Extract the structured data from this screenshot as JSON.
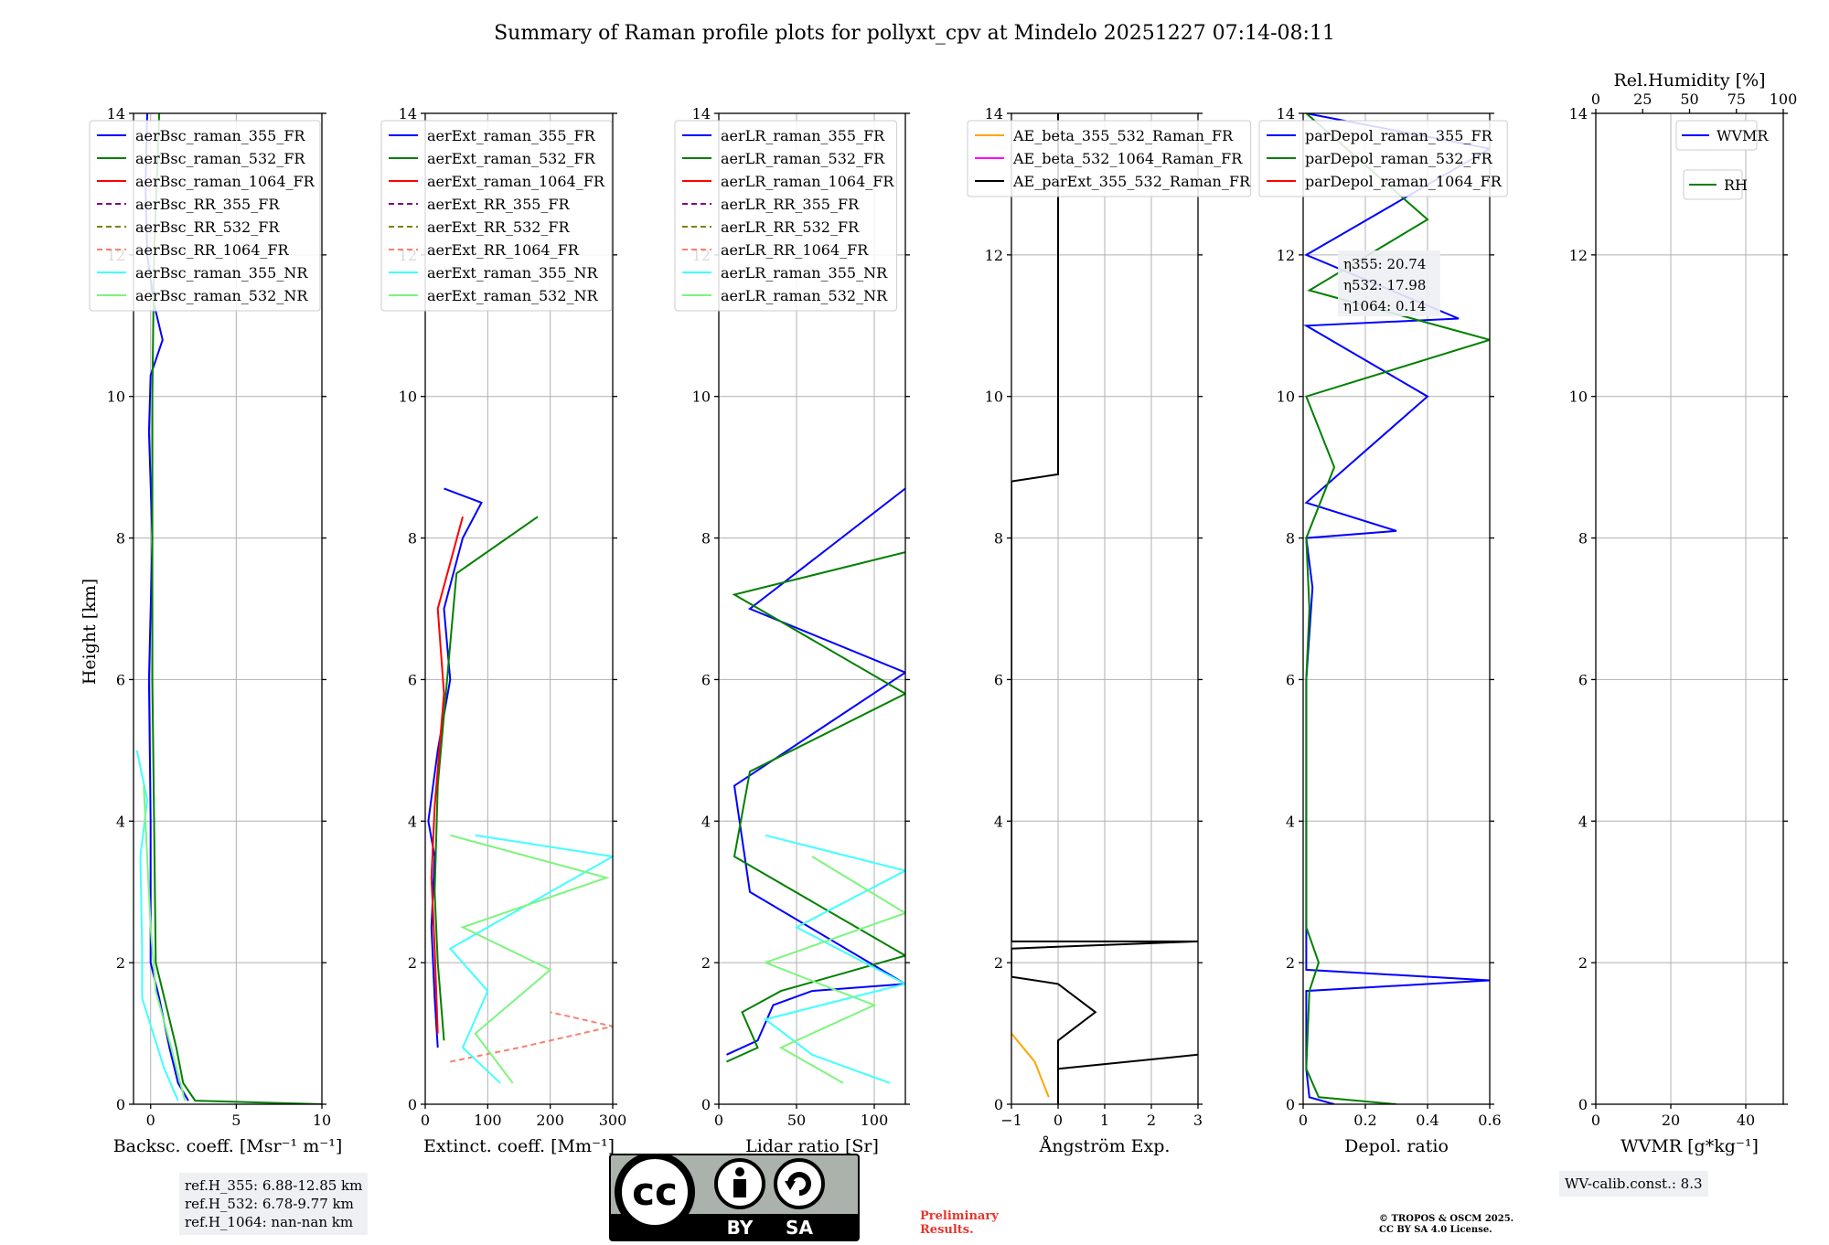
{
  "title": "Summary of Raman profile plots for pollyxt_cpv at Mindelo 20251227 07:14-08:11",
  "ylabel": "Height [km]",
  "preliminary": [
    "Preliminary",
    "Results."
  ],
  "copyright": [
    "© TROPOS & OSCM 2025.",
    "CC BY SA 4.0 License."
  ],
  "ref_heights": [
    "ref.H_355: 6.88-12.85 km",
    "ref.H_532: 6.78-9.77 km",
    "ref.H_1064: nan-nan km"
  ],
  "wv_calib": "WV-calib.const.: 8.3",
  "license_badge": {
    "cc": "cc",
    "by": "BY",
    "sa": "SA"
  },
  "chart_data": [
    {
      "type": "line",
      "name": "backscatter",
      "xlabel": "Backsc. coeff. [Msr⁻¹ m⁻¹]",
      "xlim": [
        -1,
        10
      ],
      "ylim": [
        0,
        14
      ],
      "xticks": [
        0,
        5,
        10
      ],
      "yticks": [
        0,
        2,
        4,
        6,
        8,
        10,
        12,
        14
      ],
      "legend": "top-left",
      "series": [
        {
          "name": "aerBsc_raman_355_FR",
          "color": "#0000ff",
          "dash": "",
          "points": [
            [
              2.2,
              0.05
            ],
            [
              1.6,
              0.3
            ],
            [
              1.1,
              0.8
            ],
            [
              0.5,
              1.5
            ],
            [
              0.0,
              2.0
            ],
            [
              0.0,
              4
            ],
            [
              -0.1,
              6
            ],
            [
              0.1,
              8
            ],
            [
              -0.1,
              9.5
            ],
            [
              0.0,
              10.3
            ],
            [
              0.7,
              10.8
            ],
            [
              0.2,
              11.3
            ],
            [
              -0.2,
              12
            ],
            [
              -0.3,
              13
            ],
            [
              -0.2,
              14
            ]
          ]
        },
        {
          "name": "aerBsc_raman_532_FR",
          "color": "#008000",
          "dash": "",
          "points": [
            [
              10,
              0.0
            ],
            [
              2.6,
              0.05
            ],
            [
              1.9,
              0.3
            ],
            [
              1.5,
              0.8
            ],
            [
              0.8,
              1.5
            ],
            [
              0.3,
              2.0
            ],
            [
              0.2,
              4
            ],
            [
              0.1,
              6
            ],
            [
              0.1,
              8
            ],
            [
              0.1,
              10
            ],
            [
              0.2,
              12
            ],
            [
              0.5,
              14
            ]
          ]
        },
        {
          "name": "aerBsc_raman_1064_FR",
          "color": "#ff0000",
          "dash": "",
          "points": []
        },
        {
          "name": "aerBsc_RR_355_FR",
          "color": "#800080",
          "dash": "6,4",
          "points": []
        },
        {
          "name": "aerBsc_RR_532_FR",
          "color": "#808000",
          "dash": "6,4",
          "points": []
        },
        {
          "name": "aerBsc_RR_1064_FR",
          "color": "#fa8072",
          "dash": "6,4",
          "points": []
        },
        {
          "name": "aerBsc_raman_355_NR",
          "color": "#40ffff",
          "dash": "",
          "points": [
            [
              1.6,
              0.05
            ],
            [
              0.8,
              0.5
            ],
            [
              -0.5,
              1.5
            ],
            [
              -0.5,
              2.2
            ],
            [
              -0.6,
              3.5
            ],
            [
              -0.2,
              4.3
            ],
            [
              -0.8,
              5.0
            ]
          ]
        },
        {
          "name": "aerBsc_raman_532_NR",
          "color": "#7df57d",
          "dash": "",
          "points": [
            [
              2.0,
              0.05
            ],
            [
              1.2,
              0.8
            ],
            [
              0.3,
              1.6
            ],
            [
              0.0,
              2.5
            ],
            [
              -0.4,
              4.5
            ]
          ]
        }
      ]
    },
    {
      "type": "line",
      "name": "extinction",
      "xlabel": "Extinct. coeff. [Mm⁻¹]",
      "xlim": [
        0,
        300
      ],
      "ylim": [
        0,
        14
      ],
      "xticks": [
        0,
        100,
        200,
        300
      ],
      "yticks": [
        0,
        2,
        4,
        6,
        8,
        10,
        12,
        14
      ],
      "legend": "top-left",
      "series": [
        {
          "name": "aerExt_raman_355_FR",
          "color": "#0000ff",
          "dash": "",
          "points": [
            [
              20,
              0.8
            ],
            [
              15,
              1.5
            ],
            [
              10,
              2.5
            ],
            [
              15,
              3.5
            ],
            [
              5,
              4.0
            ],
            [
              20,
              5.0
            ],
            [
              40,
              6.0
            ],
            [
              30,
              7.0
            ],
            [
              60,
              8.0
            ],
            [
              90,
              8.5
            ],
            [
              30,
              8.7
            ]
          ]
        },
        {
          "name": "aerExt_raman_532_FR",
          "color": "#008000",
          "dash": "",
          "points": [
            [
              30,
              0.9
            ],
            [
              20,
              2.0
            ],
            [
              15,
              3.0
            ],
            [
              20,
              4.5
            ],
            [
              30,
              5.5
            ],
            [
              40,
              6.5
            ],
            [
              50,
              7.5
            ],
            [
              180,
              8.3
            ]
          ]
        },
        {
          "name": "aerExt_raman_1064_FR",
          "color": "#ff0000",
          "dash": "",
          "points": [
            [
              20,
              1.0
            ],
            [
              15,
              2.2
            ],
            [
              10,
              3.2
            ],
            [
              15,
              4.2
            ],
            [
              30,
              5.8
            ],
            [
              20,
              7.0
            ],
            [
              60,
              8.3
            ]
          ]
        },
        {
          "name": "aerExt_RR_355_FR",
          "color": "#800080",
          "dash": "6,4",
          "points": []
        },
        {
          "name": "aerExt_RR_532_FR",
          "color": "#808000",
          "dash": "6,4",
          "points": []
        },
        {
          "name": "aerExt_RR_1064_FR",
          "color": "#fa8072",
          "dash": "6,4",
          "points": [
            [
              40,
              0.6
            ],
            [
              150,
              0.8
            ],
            [
              300,
              1.1
            ],
            [
              200,
              1.3
            ]
          ]
        },
        {
          "name": "aerExt_raman_355_NR",
          "color": "#40ffff",
          "dash": "",
          "points": [
            [
              120,
              0.3
            ],
            [
              60,
              0.8
            ],
            [
              100,
              1.6
            ],
            [
              40,
              2.2
            ],
            [
              300,
              3.5
            ],
            [
              80,
              3.8
            ]
          ]
        },
        {
          "name": "aerExt_raman_532_NR",
          "color": "#7df57d",
          "dash": "",
          "points": [
            [
              140,
              0.3
            ],
            [
              80,
              1.0
            ],
            [
              200,
              1.9
            ],
            [
              60,
              2.5
            ],
            [
              290,
              3.2
            ],
            [
              40,
              3.8
            ]
          ]
        }
      ]
    },
    {
      "type": "line",
      "name": "lidar_ratio",
      "xlabel": "Lidar ratio [Sr]",
      "xlim": [
        0,
        120
      ],
      "ylim": [
        0,
        14
      ],
      "xticks": [
        0,
        50,
        100
      ],
      "yticks": [
        0,
        2,
        4,
        6,
        8,
        10,
        12,
        14
      ],
      "legend": "top-left",
      "series": [
        {
          "name": "aerLR_raman_355_FR",
          "color": "#0000ff",
          "dash": "",
          "points": [
            [
              5,
              0.7
            ],
            [
              25,
              0.9
            ],
            [
              35,
              1.4
            ],
            [
              60,
              1.6
            ],
            [
              120,
              1.7
            ],
            [
              20,
              3.0
            ],
            [
              10,
              4.5
            ],
            [
              120,
              6.1
            ],
            [
              20,
              7.0
            ],
            [
              120,
              8.7
            ]
          ]
        },
        {
          "name": "aerLR_raman_532_FR",
          "color": "#008000",
          "dash": "",
          "points": [
            [
              5,
              0.6
            ],
            [
              25,
              0.8
            ],
            [
              15,
              1.3
            ],
            [
              40,
              1.6
            ],
            [
              120,
              2.1
            ],
            [
              10,
              3.5
            ],
            [
              20,
              4.7
            ],
            [
              120,
              5.8
            ],
            [
              10,
              7.2
            ],
            [
              120,
              7.8
            ]
          ]
        },
        {
          "name": "aerLR_raman_1064_FR",
          "color": "#ff0000",
          "dash": "",
          "points": []
        },
        {
          "name": "aerLR_RR_355_FR",
          "color": "#800080",
          "dash": "6,4",
          "points": []
        },
        {
          "name": "aerLR_RR_532_FR",
          "color": "#808000",
          "dash": "6,4",
          "points": []
        },
        {
          "name": "aerLR_RR_1064_FR",
          "color": "#fa8072",
          "dash": "6,4",
          "points": []
        },
        {
          "name": "aerLR_raman_355_NR",
          "color": "#40ffff",
          "dash": "",
          "points": [
            [
              110,
              0.3
            ],
            [
              60,
              0.7
            ],
            [
              30,
              1.2
            ],
            [
              120,
              1.7
            ],
            [
              50,
              2.5
            ],
            [
              120,
              3.3
            ],
            [
              30,
              3.8
            ]
          ]
        },
        {
          "name": "aerLR_raman_532_NR",
          "color": "#7df57d",
          "dash": "",
          "points": [
            [
              80,
              0.3
            ],
            [
              40,
              0.8
            ],
            [
              100,
              1.4
            ],
            [
              30,
              2.0
            ],
            [
              120,
              2.7
            ],
            [
              60,
              3.5
            ]
          ]
        }
      ]
    },
    {
      "type": "line",
      "name": "angstrom",
      "xlabel": "Ångström Exp.",
      "xlim": [
        -1,
        3
      ],
      "ylim": [
        0,
        14
      ],
      "xticks": [
        -1,
        0,
        1,
        2,
        3
      ],
      "yticks": [
        0,
        2,
        4,
        6,
        8,
        10,
        12,
        14
      ],
      "legend": "top-left",
      "series": [
        {
          "name": "AE_beta_355_532_Raman_FR",
          "color": "#ffa500",
          "dash": "",
          "points": [
            [
              -0.2,
              0.1
            ],
            [
              -0.5,
              0.6
            ],
            [
              -1.0,
              1.0
            ]
          ]
        },
        {
          "name": "AE_beta_532_1064_Raman_FR",
          "color": "#ff00ff",
          "dash": "",
          "points": []
        },
        {
          "name": "AE_parExt_355_532_Raman_FR",
          "color": "#000000",
          "dash": "",
          "points": [
            [
              0.0,
              0.0
            ],
            [
              0.0,
              0.5
            ],
            [
              3.0,
              0.7
            ],
            [
              0.0,
              0.5
            ],
            [
              0.0,
              0.9
            ],
            [
              0.8,
              1.3
            ],
            [
              0.0,
              1.7
            ],
            [
              -1.0,
              1.8
            ],
            [
              -1.0,
              2.2
            ],
            [
              3.0,
              2.3
            ],
            [
              -1.0,
              2.3
            ],
            [
              -1.0,
              8.8
            ],
            [
              0.0,
              8.9
            ],
            [
              0.0,
              14
            ]
          ]
        }
      ]
    },
    {
      "type": "line",
      "name": "depolarization",
      "xlabel": "Depol. ratio",
      "xlim": [
        0,
        0.6
      ],
      "ylim": [
        0,
        14
      ],
      "xticks": [
        0.0,
        0.2,
        0.4,
        0.6
      ],
      "yticks": [
        0,
        2,
        4,
        6,
        8,
        10,
        12,
        14
      ],
      "legend": "top-left",
      "annotation": [
        "η355: 20.74",
        "η532: 17.98",
        "η1064: 0.14"
      ],
      "series": [
        {
          "name": "parDepol_raman_355_FR",
          "color": "#0000ff",
          "dash": "",
          "points": [
            [
              0.1,
              0.0
            ],
            [
              0.02,
              0.1
            ],
            [
              0.01,
              0.5
            ],
            [
              0.01,
              1.6
            ],
            [
              0.6,
              1.75
            ],
            [
              0.01,
              1.9
            ],
            [
              0.01,
              6.0
            ],
            [
              0.03,
              7.3
            ],
            [
              0.01,
              8.0
            ],
            [
              0.3,
              8.1
            ],
            [
              0.01,
              8.5
            ],
            [
              0.4,
              10.0
            ],
            [
              0.01,
              11.0
            ],
            [
              0.5,
              11.1
            ],
            [
              0.01,
              12.0
            ],
            [
              0.6,
              13.5
            ],
            [
              0.01,
              14.0
            ]
          ]
        },
        {
          "name": "parDepol_raman_532_FR",
          "color": "#008000",
          "dash": "",
          "points": [
            [
              0.3,
              0.0
            ],
            [
              0.05,
              0.1
            ],
            [
              0.01,
              0.5
            ],
            [
              0.02,
              1.6
            ],
            [
              0.05,
              2.0
            ],
            [
              0.01,
              2.5
            ],
            [
              0.01,
              6.0
            ],
            [
              0.02,
              7.0
            ],
            [
              0.01,
              8.0
            ],
            [
              0.1,
              9.0
            ],
            [
              0.01,
              10.0
            ],
            [
              0.6,
              10.8
            ],
            [
              0.02,
              11.5
            ],
            [
              0.4,
              12.5
            ],
            [
              0.01,
              14.0
            ]
          ]
        },
        {
          "name": "parDepol_raman_1064_FR",
          "color": "#ff0000",
          "dash": "",
          "points": []
        }
      ]
    },
    {
      "type": "line",
      "name": "water_vapor",
      "xlabel": "WVMR [g*kg⁻¹]",
      "toplabel": "Rel.Humidity [%]",
      "xlim": [
        0,
        50
      ],
      "ylim": [
        0,
        14
      ],
      "xticks": [
        0,
        20,
        40
      ],
      "yticks": [
        0,
        2,
        4,
        6,
        8,
        10,
        12,
        14
      ],
      "topxlim": [
        0,
        100
      ],
      "topxticks": [
        0,
        25,
        50,
        75,
        100
      ],
      "legend": "top-right",
      "series": [
        {
          "name": "WVMR",
          "color": "#0000ff",
          "dash": "",
          "points": []
        },
        {
          "name": "RH",
          "color": "#008000",
          "dash": "",
          "points": []
        }
      ]
    }
  ]
}
